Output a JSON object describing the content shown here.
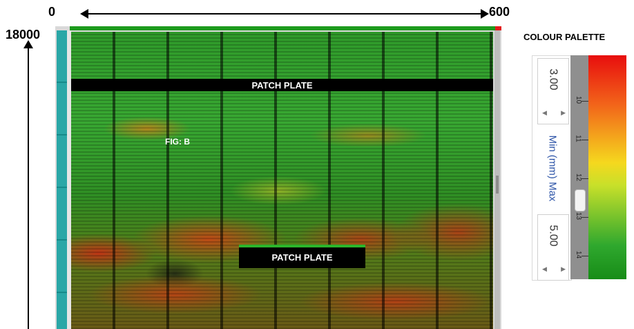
{
  "axis": {
    "x_start": "0",
    "x_end": "600",
    "y_top": "18000"
  },
  "scan": {
    "patch_plate_top": "PATCH PLATE",
    "patch_plate_bottom": "PATCH PLATE",
    "figure_label": "FIG: B"
  },
  "palette": {
    "title": "COLOUR PALETTE",
    "min_value": "3.00",
    "max_value": "5.00",
    "range_label": "Min (mm) Max",
    "ticks": [
      "10",
      "11",
      "12",
      "13",
      "14"
    ],
    "colors": [
      "#e80e0e",
      "#f2641a",
      "#f5d81e",
      "#c8e02a",
      "#2fa82e",
      "#178c17"
    ]
  }
}
